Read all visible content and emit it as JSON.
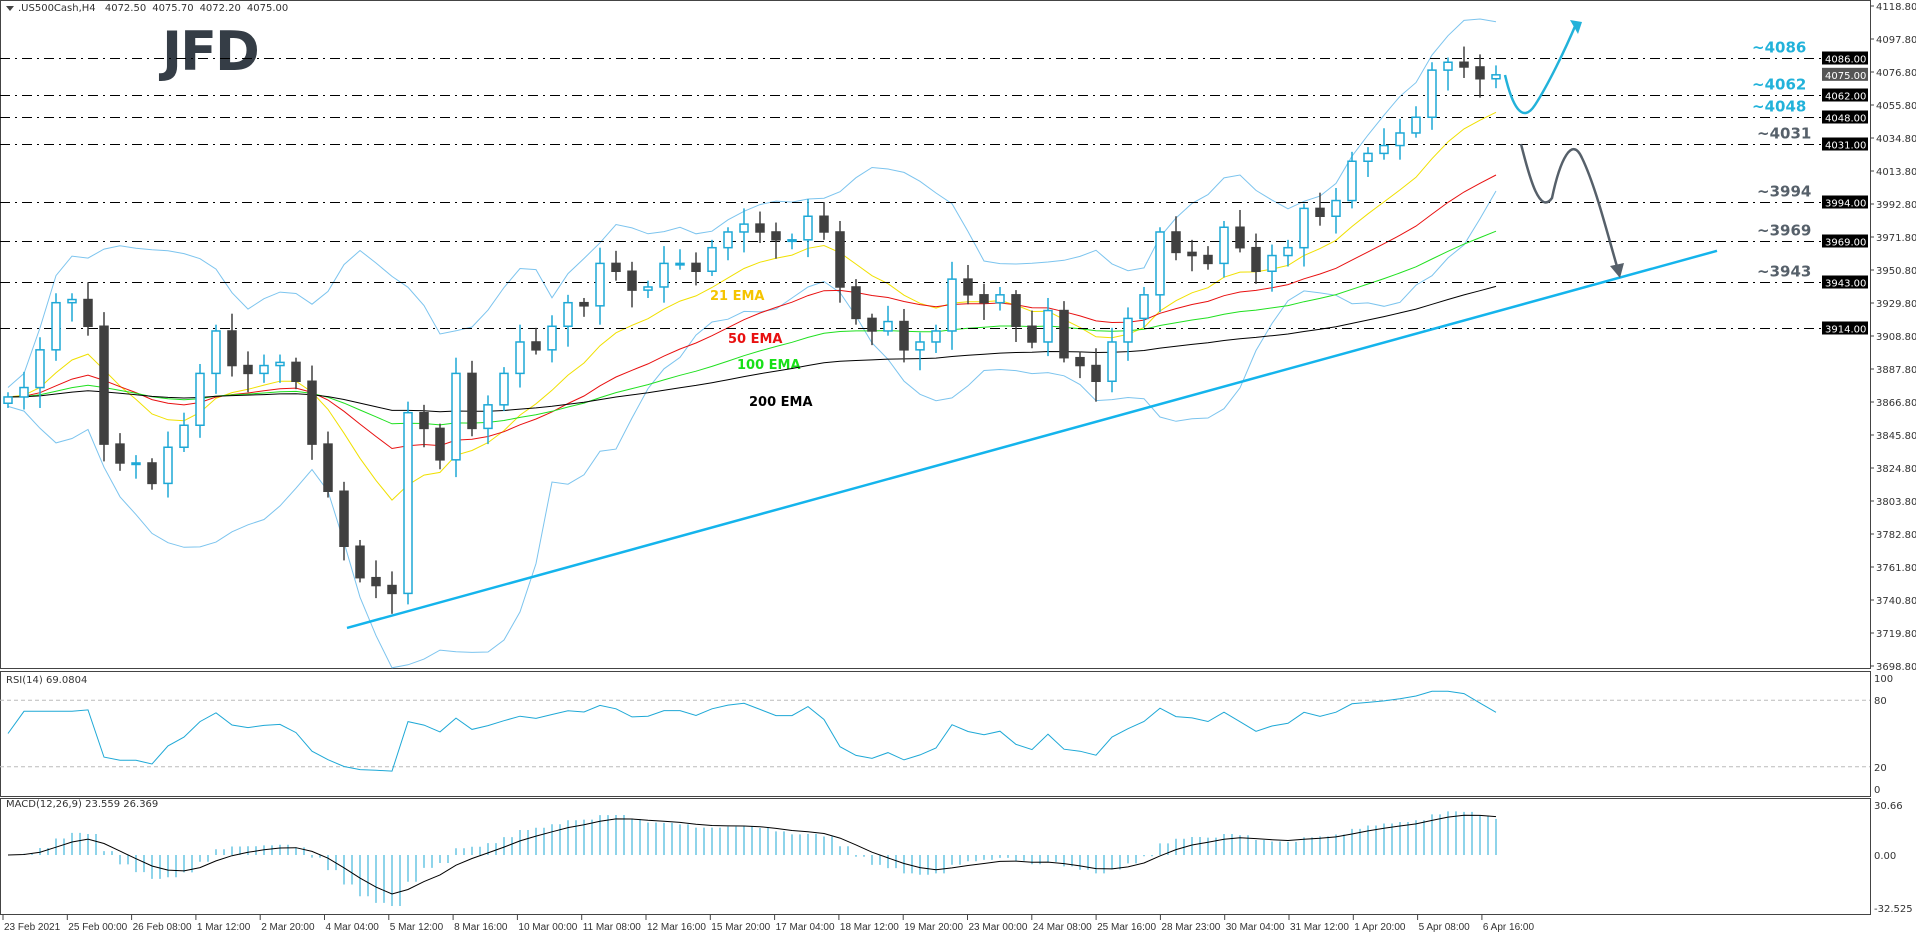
{
  "header": {
    "symbol": ".US500Cash,H4",
    "open": "4072.50",
    "high": "4075.70",
    "low": "4072.20",
    "close": "4075.00"
  },
  "logo": "JFD",
  "colors": {
    "bull": "#1ea8d6",
    "bear": "#404040",
    "ema21": "#f0e000",
    "ema50": "#e81010",
    "ema100": "#20e020",
    "ema200": "#000000",
    "bollinger": "#7cc4ee",
    "trendline": "#14b4ec",
    "level_up": "#22b2da",
    "level_down": "#56606a",
    "rsi": "#1ea8d6",
    "macd_hist": "#1ea8d6",
    "macd_signal": "#000000"
  },
  "chart_data": [
    {
      "type": "candlestick",
      "title": ".US500Cash,H4",
      "ylim": [
        3698.8,
        4118.8
      ],
      "y_ticks": [
        "4118.80",
        "4097.80",
        "4076.80",
        "4055.80",
        "4034.80",
        "4013.80",
        "3992.80",
        "3971.80",
        "3950.80",
        "3929.80",
        "3908.80",
        "3887.80",
        "3866.80",
        "3845.80",
        "3824.80",
        "3803.80",
        "3782.80",
        "3761.80",
        "3740.80",
        "3719.80",
        "3698.80"
      ],
      "x_ticks": [
        "23 Feb 2021",
        "25 Feb 00:00",
        "26 Feb 08:00",
        "1 Mar 12:00",
        "2 Mar 20:00",
        "4 Mar 04:00",
        "5 Mar 12:00",
        "8 Mar 16:00",
        "10 Mar 00:00",
        "11 Mar 08:00",
        "12 Mar 16:00",
        "15 Mar 20:00",
        "17 Mar 04:00",
        "18 Mar 12:00",
        "19 Mar 20:00",
        "23 Mar 00:00",
        "24 Mar 08:00",
        "25 Mar 16:00",
        "28 Mar 23:00",
        "30 Mar 04:00",
        "31 Mar 12:00",
        "1 Apr 20:00",
        "5 Apr 08:00",
        "6 Apr 16:00"
      ],
      "closes": [
        3870,
        3876,
        3900,
        3930,
        3932,
        3915,
        3840,
        3828,
        3828,
        3815,
        3838,
        3852,
        3885,
        3912,
        3890,
        3885,
        3890,
        3892,
        3880,
        3840,
        3810,
        3775,
        3755,
        3750,
        3745,
        3860,
        3850,
        3830,
        3885,
        3850,
        3865,
        3885,
        3905,
        3900,
        3915,
        3930,
        3928,
        3955,
        3950,
        3938,
        3940,
        3955,
        3955,
        3950,
        3965,
        3975,
        3980,
        3975,
        3970,
        3970,
        3985,
        3975,
        3940,
        3920,
        3912,
        3918,
        3900,
        3905,
        3912,
        3945,
        3935,
        3930,
        3935,
        3915,
        3905,
        3925,
        3895,
        3890,
        3880,
        3905,
        3920,
        3935,
        3975,
        3962,
        3960,
        3955,
        3978,
        3965,
        3950,
        3960,
        3965,
        3990,
        3985,
        3995,
        4020,
        4025,
        4030,
        4038,
        4048,
        4078,
        4083,
        4080,
        4072.5,
        4075
      ],
      "indicators": [
        {
          "name": "21 EMA",
          "period": 21,
          "color_key": "ema21",
          "label_color": "#f5c400"
        },
        {
          "name": "50 EMA",
          "period": 50,
          "color_key": "ema50",
          "label_color": "#e81010"
        },
        {
          "name": "100 EMA",
          "period": 100,
          "color_key": "ema100",
          "label_color": "#18e018"
        },
        {
          "name": "200 EMA",
          "period": 200,
          "color_key": "ema200",
          "label_color": "#000000"
        }
      ],
      "levels": [
        {
          "price": 4086,
          "label": "~4086",
          "box": "4086.00",
          "dir": "up"
        },
        {
          "price": 4062,
          "label": "~4062",
          "box": "4062.00",
          "dir": "up"
        },
        {
          "price": 4048,
          "label": "~4048",
          "box": "4048.00",
          "dir": "up"
        },
        {
          "price": 4031,
          "label": "~4031",
          "box": "4031.00",
          "dir": "down"
        },
        {
          "price": 3994,
          "label": "~3994",
          "box": "3994.00",
          "dir": "down"
        },
        {
          "price": 3969,
          "label": "~3969",
          "box": "3969.00",
          "dir": "down"
        },
        {
          "price": 3943,
          "label": "~3943",
          "box": "3943.00",
          "dir": "down"
        },
        {
          "price": 3914,
          "label": "",
          "box": "3914.00",
          "dir": "down"
        }
      ],
      "current_price": {
        "price": 4075,
        "box": "4075.00"
      },
      "trendline": {
        "start_price": 3723,
        "end_price": 3963
      }
    },
    {
      "type": "line",
      "title": "RSI(14) 69.0804",
      "ylim": [
        0,
        100
      ],
      "y_ticks": [
        "100",
        "80",
        "20",
        "0"
      ],
      "levels": [
        80,
        20
      ],
      "last_value": 69.0804
    },
    {
      "type": "bar",
      "title": "MACD(12,26,9) 23.559 26.369",
      "ylim": [
        -32.525,
        30.66
      ],
      "y_ticks": [
        "30.66",
        "0.00",
        "-32.525"
      ],
      "macd": 23.559,
      "signal": 26.369
    }
  ]
}
